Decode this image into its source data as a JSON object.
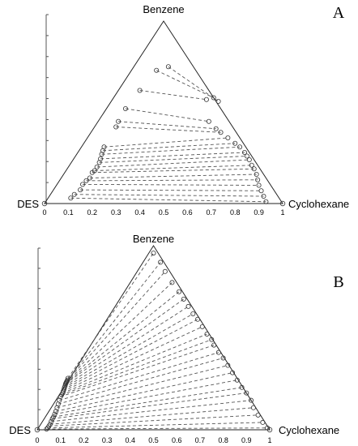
{
  "chart_data": [
    {
      "type": "scatter",
      "panel_label": "A",
      "vertex_labels": {
        "top": "Benzene",
        "left": "DES",
        "right": "Cyclohexane"
      },
      "xlim": [
        0,
        1
      ],
      "x_ticks": [
        "0",
        "0.1",
        "0.2",
        "0.3",
        "0.4",
        "0.5",
        "0.6",
        "0.7",
        "0.8",
        "0.9",
        "1"
      ],
      "grid": false,
      "tie_lines": [
        [
          [
            0.11,
            0.03
          ],
          [
            0.93,
            0.01
          ]
        ],
        [
          [
            0.125,
            0.05
          ],
          [
            0.92,
            0.04
          ]
        ],
        [
          [
            0.15,
            0.075
          ],
          [
            0.91,
            0.07
          ]
        ],
        [
          [
            0.16,
            0.105
          ],
          [
            0.9,
            0.1
          ]
        ],
        [
          [
            0.175,
            0.125
          ],
          [
            0.895,
            0.13
          ]
        ],
        [
          [
            0.19,
            0.14
          ],
          [
            0.89,
            0.16
          ]
        ],
        [
          [
            0.2,
            0.17
          ],
          [
            0.88,
            0.19
          ]
        ],
        [
          [
            0.21,
            0.18
          ],
          [
            0.87,
            0.21
          ]
        ],
        [
          [
            0.22,
            0.2
          ],
          [
            0.86,
            0.24
          ]
        ],
        [
          [
            0.23,
            0.225
          ],
          [
            0.85,
            0.26
          ]
        ],
        [
          [
            0.235,
            0.245
          ],
          [
            0.84,
            0.28
          ]
        ],
        [
          [
            0.24,
            0.27
          ],
          [
            0.82,
            0.31
          ]
        ],
        [
          [
            0.245,
            0.29
          ],
          [
            0.8,
            0.33
          ]
        ],
        [
          [
            0.25,
            0.31
          ],
          [
            0.77,
            0.36
          ]
        ],
        [
          [
            0.3,
            0.42
          ],
          [
            0.74,
            0.39
          ]
        ],
        [
          [
            0.31,
            0.45
          ],
          [
            0.72,
            0.41
          ]
        ],
        [
          [
            0.34,
            0.52
          ],
          [
            0.69,
            0.45
          ]
        ],
        [
          [
            0.4,
            0.62
          ],
          [
            0.68,
            0.57
          ]
        ],
        [
          [
            0.47,
            0.73
          ],
          [
            0.71,
            0.58
          ]
        ],
        [
          [
            0.52,
            0.75
          ],
          [
            0.73,
            0.56
          ]
        ]
      ]
    },
    {
      "type": "scatter",
      "panel_label": "B",
      "vertex_labels": {
        "top": "Benzene",
        "left": "DES",
        "right": "Cyclohexane"
      },
      "xlim": [
        0,
        1
      ],
      "x_ticks": [
        "0",
        "0.1",
        "0.2",
        "0.3",
        "0.4",
        "0.5",
        "0.6",
        "0.7",
        "0.8",
        "0.9",
        "1"
      ],
      "grid": false,
      "tie_lines": [
        [
          [
            0.04,
            0.004
          ],
          [
            0.99,
            0.01
          ]
        ],
        [
          [
            0.045,
            0.01
          ],
          [
            0.97,
            0.04
          ]
        ],
        [
          [
            0.05,
            0.02
          ],
          [
            0.95,
            0.08
          ]
        ],
        [
          [
            0.055,
            0.03
          ],
          [
            0.93,
            0.12
          ]
        ],
        [
          [
            0.06,
            0.045
          ],
          [
            0.92,
            0.16
          ]
        ],
        [
          [
            0.065,
            0.06
          ],
          [
            0.9,
            0.2
          ]
        ],
        [
          [
            0.07,
            0.07
          ],
          [
            0.88,
            0.23
          ]
        ],
        [
          [
            0.075,
            0.085
          ],
          [
            0.86,
            0.27
          ]
        ],
        [
          [
            0.08,
            0.1
          ],
          [
            0.84,
            0.31
          ]
        ],
        [
          [
            0.085,
            0.12
          ],
          [
            0.82,
            0.35
          ]
        ],
        [
          [
            0.09,
            0.14
          ],
          [
            0.8,
            0.39
          ]
        ],
        [
          [
            0.095,
            0.16
          ],
          [
            0.78,
            0.42
          ]
        ],
        [
          [
            0.1,
            0.18
          ],
          [
            0.76,
            0.46
          ]
        ],
        [
          [
            0.105,
            0.19
          ],
          [
            0.75,
            0.49
          ]
        ],
        [
          [
            0.11,
            0.2
          ],
          [
            0.73,
            0.52
          ]
        ],
        [
          [
            0.112,
            0.21
          ],
          [
            0.71,
            0.56
          ]
        ],
        [
          [
            0.115,
            0.22
          ],
          [
            0.69,
            0.6
          ]
        ],
        [
          [
            0.117,
            0.23
          ],
          [
            0.67,
            0.63
          ]
        ],
        [
          [
            0.12,
            0.24
          ],
          [
            0.65,
            0.67
          ]
        ],
        [
          [
            0.122,
            0.25
          ],
          [
            0.63,
            0.71
          ]
        ],
        [
          [
            0.124,
            0.255
          ],
          [
            0.61,
            0.75
          ]
        ],
        [
          [
            0.126,
            0.26
          ],
          [
            0.58,
            0.8
          ]
        ],
        [
          [
            0.128,
            0.265
          ],
          [
            0.55,
            0.86
          ]
        ],
        [
          [
            0.13,
            0.27
          ],
          [
            0.53,
            0.91
          ]
        ],
        [
          [
            0.132,
            0.28
          ],
          [
            0.5,
            0.96
          ]
        ]
      ]
    }
  ]
}
